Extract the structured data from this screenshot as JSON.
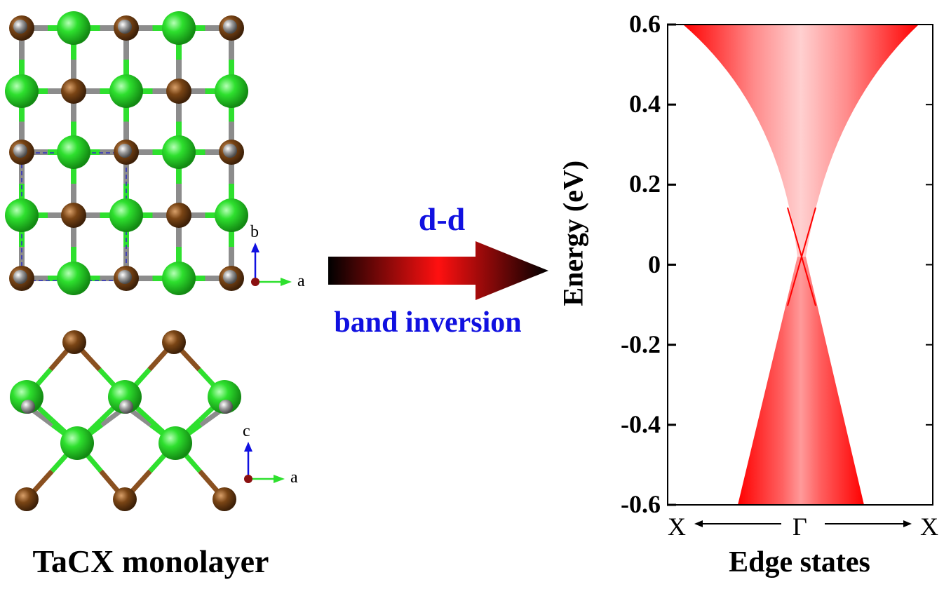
{
  "left": {
    "caption": "TaCX monolayer",
    "top_axes": {
      "up": "b",
      "right": "a"
    },
    "side_axes": {
      "up": "c",
      "right": "a"
    }
  },
  "middle": {
    "top_label": "d-d",
    "bottom_label": "band inversion"
  },
  "colors": {
    "green_atom": "#2ee02e",
    "brown_atom": "#7a4515",
    "gray_atom": "#8c8c8c",
    "label_blue": "#1010e0",
    "band_red": "#ff0000"
  },
  "chart_data": {
    "type": "area",
    "ylabel": "Energy (eV)",
    "xlabel": "Edge states",
    "ylim": [
      -0.6,
      0.6
    ],
    "yticks": [
      "0.6",
      "0.4",
      "0.2",
      "0",
      "-0.2",
      "-0.4",
      "-0.6"
    ],
    "ytick_values": [
      0.6,
      0.4,
      0.2,
      0,
      -0.2,
      -0.4,
      -0.6
    ],
    "xticks": [
      "X",
      "Γ",
      "X"
    ],
    "dirac_point_energy": 0.02
  }
}
